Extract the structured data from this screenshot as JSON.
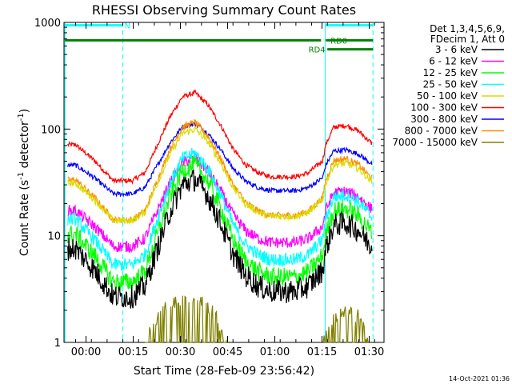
{
  "chart_data": {
    "type": "line",
    "title": "RHESSI Observing Summary Count Rates",
    "xlabel": "Start Time (28-Feb-09 23:56:42)",
    "ylabel_main": "Count Rate (s",
    "ylabel_sup1": "-1",
    "ylabel_mid": " detector",
    "ylabel_sup2": "-1",
    "ylabel_end": ")",
    "x_unit": "minutes after 23:56:42",
    "xlim": [
      -3.7,
      98
    ],
    "ylim": [
      1,
      1000
    ],
    "yscale": "log",
    "x_ticks": [
      {
        "x": 3.3,
        "label": "00:00"
      },
      {
        "x": 18.3,
        "label": "00:15"
      },
      {
        "x": 33.3,
        "label": "00:30"
      },
      {
        "x": 48.3,
        "label": "00:45"
      },
      {
        "x": 63.3,
        "label": "01:00"
      },
      {
        "x": 78.3,
        "label": "01:15"
      },
      {
        "x": 93.3,
        "label": "01:30"
      }
    ],
    "y_ticks": [
      {
        "y": 1,
        "label": "1"
      },
      {
        "y": 10,
        "label": "10"
      },
      {
        "y": 100,
        "label": "100"
      },
      {
        "y": 1000,
        "label": "1000"
      }
    ],
    "legend_header": [
      "Det 1,3,4,5,6,9,",
      "FDecim 1, Att 0"
    ],
    "legend_placement": "right",
    "series": [
      {
        "name": "3 - 6 keV",
        "color": "#000000"
      },
      {
        "name": "6 - 12 keV",
        "color": "#ff00ff"
      },
      {
        "name": "12 - 25 keV",
        "color": "#00ff00"
      },
      {
        "name": "25 - 50 keV",
        "color": "#00ffff"
      },
      {
        "name": "50 - 100 keV",
        "color": "#dcdc00"
      },
      {
        "name": "100 - 300 keV",
        "color": "#ff0000"
      },
      {
        "name": "300 - 800 keV",
        "color": "#0000ff"
      },
      {
        "name": "800 - 7000 keV",
        "color": "#ff8c00"
      },
      {
        "name": "7000 - 15000 keV",
        "color": "#808000"
      }
    ],
    "curve_shape": {
      "x": [
        0,
        6,
        12,
        18,
        22,
        26,
        30,
        34,
        38,
        42,
        46,
        50,
        54,
        58,
        62,
        66,
        70,
        74,
        78.5,
        79.5,
        82,
        86,
        90,
        94
      ],
      "g": [
        0.1,
        -0.1,
        -0.35,
        -0.35,
        -0.25,
        0.1,
        0.45,
        0.7,
        0.75,
        0.6,
        0.35,
        0.05,
        -0.15,
        -0.25,
        -0.3,
        -0.3,
        -0.3,
        -0.25,
        -0.1,
        0.1,
        0.32,
        0.34,
        0.27,
        0.12
      ]
    },
    "series_params": [
      {
        "base": 6.0,
        "amp": 1.0,
        "noise": 0.25
      },
      {
        "base": 14.5,
        "amp": 0.75,
        "noise": 0.12
      },
      {
        "base": 8.2,
        "amp": 1.0,
        "noise": 0.2
      },
      {
        "base": 11.5,
        "amp": 0.95,
        "noise": 0.14
      },
      {
        "base": 26.0,
        "amp": 0.78,
        "noise": 0.07
      },
      {
        "base": 60.0,
        "amp": 0.75,
        "noise": 0.05
      },
      {
        "base": 40.0,
        "amp": 0.6,
        "noise": 0.05
      },
      {
        "base": 27.5,
        "amp": 0.83,
        "noise": 0.07
      }
    ],
    "high_energy_series": {
      "segments": [
        {
          "x": [
            22,
            28,
            33,
            38,
            43,
            48
          ],
          "y": [
            1,
            2.1,
            2.6,
            2.6,
            2.1,
            1
          ]
        },
        {
          "x": [
            78.7,
            82,
            86,
            90,
            93
          ],
          "y": [
            1,
            1.8,
            1.9,
            1.8,
            1
          ]
        }
      ]
    },
    "vertical_lines": [
      {
        "x": -3.4,
        "color": "#00ffff",
        "style": "solid"
      },
      {
        "x": 15.0,
        "color": "#00ffff",
        "style": "dashed"
      },
      {
        "x": 79.3,
        "color": "#00ffff",
        "style": "solid"
      },
      {
        "x": 94.5,
        "color": "#00ffff",
        "style": "dashed"
      }
    ],
    "annotations": [
      {
        "label": "N",
        "color": "#00ffff",
        "y": 940,
        "segments": [
          [
            -3.4,
            15.0
          ],
          [
            79.5,
            94.5
          ]
        ],
        "label_x": 15.5
      },
      {
        "label": "RD0",
        "color": "#008000",
        "y": 680,
        "segments": [
          [
            -3.4,
            78.0
          ],
          [
            79.5,
            94.5
          ]
        ],
        "label_x": 81.0
      },
      {
        "label": "RD4",
        "color": "#008000",
        "y": 560,
        "segments": [
          [
            80.0,
            94.5
          ]
        ],
        "label_x": 74.0
      }
    ],
    "timestamp": "14-Oct-2021 01:36"
  }
}
